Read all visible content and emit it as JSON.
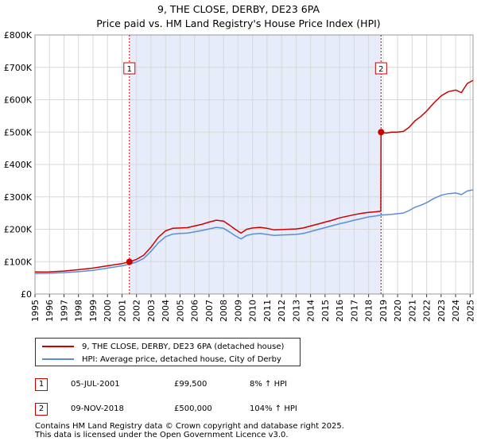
{
  "chart_data": {
    "type": "line",
    "title": "9, THE CLOSE, DERBY, DE23 6PA",
    "subtitle": "Price paid vs. HM Land Registry's House Price Index (HPI)",
    "y_ticks": [
      "£0",
      "£100K",
      "£200K",
      "£300K",
      "£400K",
      "£500K",
      "£600K",
      "£700K",
      "£800K"
    ],
    "y_tick_values": [
      0,
      100000,
      200000,
      300000,
      400000,
      500000,
      600000,
      700000,
      800000
    ],
    "ylim": [
      0,
      800000
    ],
    "xlim": [
      1995.0,
      2025.2
    ],
    "x_ticks": [
      "1995",
      "1996",
      "1997",
      "1998",
      "1999",
      "2000",
      "2001",
      "2002",
      "2003",
      "2004",
      "2005",
      "2006",
      "2007",
      "2008",
      "2009",
      "2010",
      "2011",
      "2012",
      "2013",
      "2014",
      "2015",
      "2016",
      "2017",
      "2018",
      "2019",
      "2020",
      "2021",
      "2022",
      "2023",
      "2024",
      "2025"
    ],
    "shade_range": [
      2001.51,
      2018.86
    ],
    "colors": {
      "property": "#cc0000",
      "hpi": "#5b8ed6",
      "shade": "#e6ecf9"
    },
    "series": [
      {
        "name": "9, THE CLOSE, DERBY, DE23 6PA (detached house)",
        "color": "#cc0000",
        "points": [
          [
            1995.0,
            68000
          ],
          [
            1996.0,
            68500
          ],
          [
            1997.0,
            71000
          ],
          [
            1998.0,
            75000
          ],
          [
            1999.0,
            80000
          ],
          [
            2000.0,
            87000
          ],
          [
            2001.0,
            94000
          ],
          [
            2001.51,
            99500
          ],
          [
            2002.0,
            107000
          ],
          [
            2002.5,
            120000
          ],
          [
            2003.0,
            145000
          ],
          [
            2003.5,
            175000
          ],
          [
            2004.0,
            195000
          ],
          [
            2004.5,
            203000
          ],
          [
            2005.0,
            204000
          ],
          [
            2005.5,
            205000
          ],
          [
            2006.0,
            210000
          ],
          [
            2006.5,
            215000
          ],
          [
            2007.0,
            222000
          ],
          [
            2007.5,
            228000
          ],
          [
            2008.0,
            225000
          ],
          [
            2008.4,
            213000
          ],
          [
            2008.8,
            200000
          ],
          [
            2009.2,
            188000
          ],
          [
            2009.6,
            200000
          ],
          [
            2010.0,
            204000
          ],
          [
            2010.5,
            206000
          ],
          [
            2011.0,
            203000
          ],
          [
            2011.5,
            198000
          ],
          [
            2012.0,
            199000
          ],
          [
            2012.5,
            200000
          ],
          [
            2013.0,
            201000
          ],
          [
            2013.5,
            204000
          ],
          [
            2014.0,
            210000
          ],
          [
            2014.5,
            216000
          ],
          [
            2015.0,
            222000
          ],
          [
            2015.5,
            228000
          ],
          [
            2016.0,
            235000
          ],
          [
            2016.5,
            240000
          ],
          [
            2017.0,
            245000
          ],
          [
            2017.5,
            249000
          ],
          [
            2018.0,
            252000
          ],
          [
            2018.5,
            254000
          ],
          [
            2018.84,
            256000
          ],
          [
            2018.86,
            500000
          ],
          [
            2019.2,
            497000
          ],
          [
            2019.6,
            500000
          ],
          [
            2020.0,
            500000
          ],
          [
            2020.4,
            502000
          ],
          [
            2020.8,
            515000
          ],
          [
            2021.2,
            535000
          ],
          [
            2021.6,
            548000
          ],
          [
            2022.0,
            565000
          ],
          [
            2022.5,
            590000
          ],
          [
            2023.0,
            612000
          ],
          [
            2023.5,
            625000
          ],
          [
            2024.0,
            630000
          ],
          [
            2024.4,
            622000
          ],
          [
            2024.8,
            650000
          ],
          [
            2025.2,
            660000
          ]
        ]
      },
      {
        "name": "HPI: Average price, detached house, City of Derby",
        "color": "#5b8ed6",
        "points": [
          [
            1995.0,
            63000
          ],
          [
            1996.0,
            64000
          ],
          [
            1997.0,
            66000
          ],
          [
            1998.0,
            69000
          ],
          [
            1999.0,
            73000
          ],
          [
            2000.0,
            80000
          ],
          [
            2001.0,
            87000
          ],
          [
            2001.51,
            92000
          ],
          [
            2002.0,
            99000
          ],
          [
            2002.5,
            110000
          ],
          [
            2003.0,
            132000
          ],
          [
            2003.5,
            158000
          ],
          [
            2004.0,
            177000
          ],
          [
            2004.5,
            185000
          ],
          [
            2005.0,
            187000
          ],
          [
            2005.5,
            188000
          ],
          [
            2006.0,
            192000
          ],
          [
            2006.5,
            196000
          ],
          [
            2007.0,
            201000
          ],
          [
            2007.5,
            206000
          ],
          [
            2008.0,
            203000
          ],
          [
            2008.4,
            192000
          ],
          [
            2008.8,
            180000
          ],
          [
            2009.2,
            170000
          ],
          [
            2009.6,
            181000
          ],
          [
            2010.0,
            185000
          ],
          [
            2010.5,
            187000
          ],
          [
            2011.0,
            184000
          ],
          [
            2011.5,
            181000
          ],
          [
            2012.0,
            182000
          ],
          [
            2012.5,
            183000
          ],
          [
            2013.0,
            184000
          ],
          [
            2013.5,
            187000
          ],
          [
            2014.0,
            193000
          ],
          [
            2014.5,
            199000
          ],
          [
            2015.0,
            205000
          ],
          [
            2015.5,
            211000
          ],
          [
            2016.0,
            217000
          ],
          [
            2016.5,
            222000
          ],
          [
            2017.0,
            228000
          ],
          [
            2017.5,
            233000
          ],
          [
            2018.0,
            238000
          ],
          [
            2018.5,
            241000
          ],
          [
            2018.86,
            244000
          ],
          [
            2019.2,
            245000
          ],
          [
            2019.6,
            246000
          ],
          [
            2020.0,
            248000
          ],
          [
            2020.4,
            250000
          ],
          [
            2020.8,
            258000
          ],
          [
            2021.2,
            268000
          ],
          [
            2021.6,
            274000
          ],
          [
            2022.0,
            282000
          ],
          [
            2022.5,
            295000
          ],
          [
            2023.0,
            305000
          ],
          [
            2023.5,
            310000
          ],
          [
            2024.0,
            312000
          ],
          [
            2024.4,
            307000
          ],
          [
            2024.8,
            318000
          ],
          [
            2025.2,
            322000
          ]
        ]
      }
    ],
    "sales": [
      {
        "badge": "1",
        "x": 2001.51,
        "y": 99500
      },
      {
        "badge": "2",
        "x": 2018.86,
        "y": 500000
      }
    ]
  },
  "legend": {
    "property_label": "9, THE CLOSE, DERBY, DE23 6PA (detached house)",
    "hpi_label": "HPI: Average price, detached house, City of Derby"
  },
  "sales_table": [
    {
      "badge": "1",
      "date": "05-JUL-2001",
      "price": "£99,500",
      "hpi": "8% ↑ HPI"
    },
    {
      "badge": "2",
      "date": "09-NOV-2018",
      "price": "£500,000",
      "hpi": "104% ↑ HPI"
    }
  ],
  "footer": {
    "line1": "Contains HM Land Registry data © Crown copyright and database right 2025.",
    "line2": "This data is licensed under the Open Government Licence v3.0."
  }
}
